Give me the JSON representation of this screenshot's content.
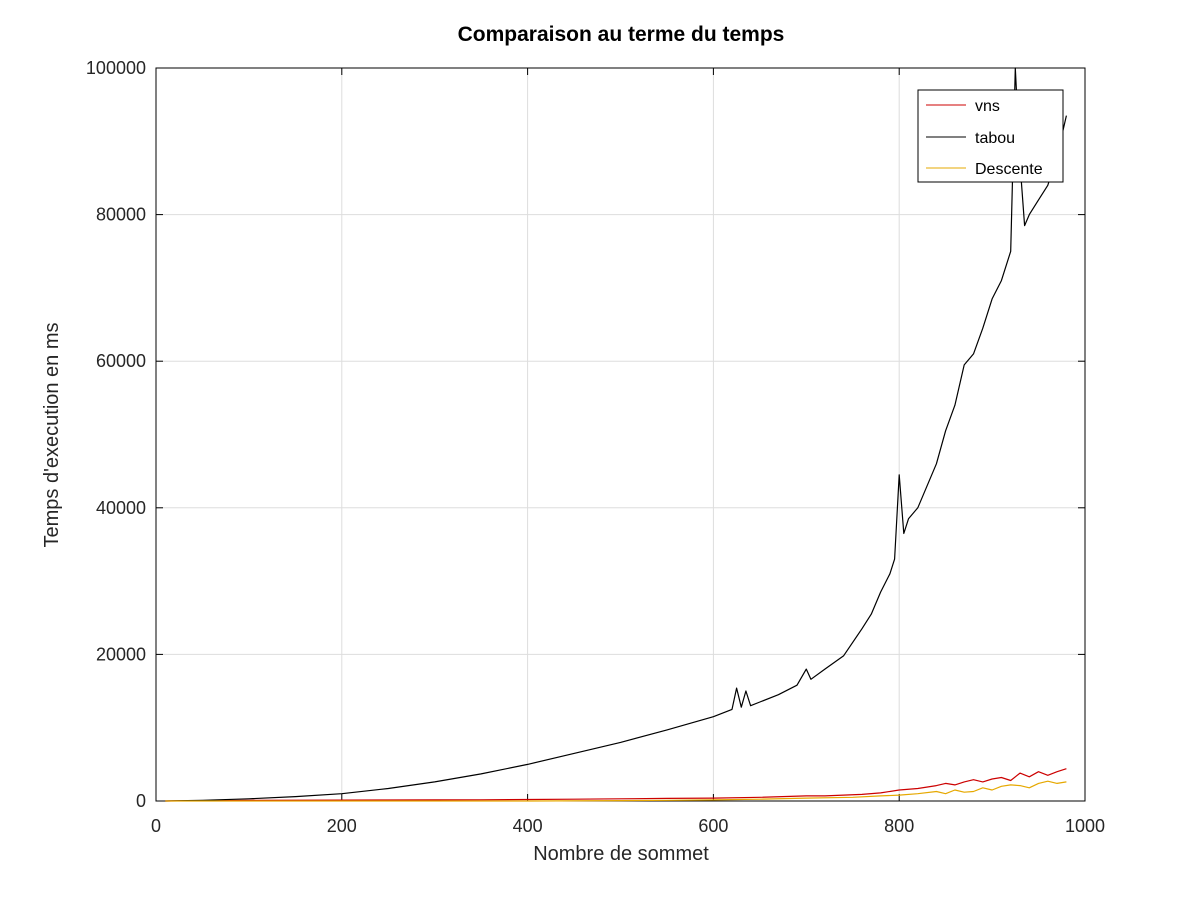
{
  "chart_data": {
    "type": "line",
    "title": "Comparaison au terme du temps",
    "xlabel": "Nombre de sommet",
    "ylabel": "Temps d'execution en ms",
    "xlim": [
      0,
      1000
    ],
    "ylim": [
      0,
      100000
    ],
    "xticks": [
      0,
      200,
      400,
      600,
      800,
      1000
    ],
    "yticks": [
      0,
      20000,
      40000,
      60000,
      80000,
      100000
    ],
    "xtick_labels": [
      "0",
      "200",
      "400",
      "600",
      "800",
      "1000"
    ],
    "ytick_labels": [
      "0",
      "20000",
      "40000",
      "60000",
      "80000",
      "100000"
    ],
    "grid": true,
    "legend_position": "top-right",
    "series": [
      {
        "name": "vns",
        "color": "#cc0000",
        "x": [
          10,
          50,
          100,
          150,
          200,
          250,
          300,
          350,
          400,
          450,
          500,
          550,
          600,
          650,
          700,
          720,
          740,
          760,
          780,
          800,
          820,
          840,
          850,
          860,
          870,
          880,
          890,
          900,
          910,
          920,
          930,
          940,
          950,
          960,
          970,
          980
        ],
        "y": [
          0,
          60,
          100,
          110,
          120,
          130,
          150,
          170,
          200,
          250,
          300,
          350,
          400,
          500,
          700,
          700,
          800,
          900,
          1100,
          1500,
          1700,
          2100,
          2400,
          2200,
          2600,
          2900,
          2600,
          3000,
          3200,
          2800,
          3800,
          3300,
          4000,
          3500,
          4000,
          4400
        ]
      },
      {
        "name": "tabou",
        "color": "#000000",
        "x": [
          10,
          50,
          100,
          150,
          200,
          250,
          300,
          350,
          400,
          450,
          500,
          550,
          600,
          620,
          625,
          630,
          635,
          640,
          650,
          670,
          690,
          700,
          705,
          720,
          740,
          760,
          770,
          780,
          790,
          795,
          800,
          805,
          810,
          820,
          830,
          840,
          850,
          860,
          870,
          880,
          890,
          900,
          910,
          920,
          925,
          930,
          935,
          940,
          950,
          960,
          970,
          980
        ],
        "y": [
          0,
          100,
          300,
          600,
          1000,
          1700,
          2600,
          3700,
          5000,
          6500,
          8000,
          9700,
          11500,
          12500,
          15400,
          12800,
          15000,
          13000,
          13500,
          14500,
          15800,
          18000,
          16600,
          18000,
          19800,
          23500,
          25500,
          28500,
          31000,
          33000,
          44500,
          36500,
          38500,
          40000,
          43000,
          46000,
          50500,
          54000,
          59500,
          61000,
          64500,
          68500,
          71000,
          75000,
          100000,
          87000,
          78500,
          80000,
          82000,
          84000,
          88000,
          93500
        ]
      },
      {
        "name": "Descente",
        "color": "#e6a800",
        "x": [
          10,
          100,
          200,
          300,
          400,
          500,
          550,
          600,
          650,
          700,
          750,
          780,
          800,
          820,
          840,
          850,
          860,
          870,
          880,
          890,
          900,
          910,
          920,
          930,
          940,
          950,
          960,
          970,
          980
        ],
        "y": [
          0,
          0,
          0,
          0,
          0,
          50,
          100,
          150,
          250,
          400,
          500,
          700,
          800,
          1000,
          1300,
          1000,
          1500,
          1200,
          1300,
          1800,
          1500,
          2000,
          2200,
          2100,
          1800,
          2400,
          2700,
          2400,
          2600
        ]
      }
    ]
  }
}
